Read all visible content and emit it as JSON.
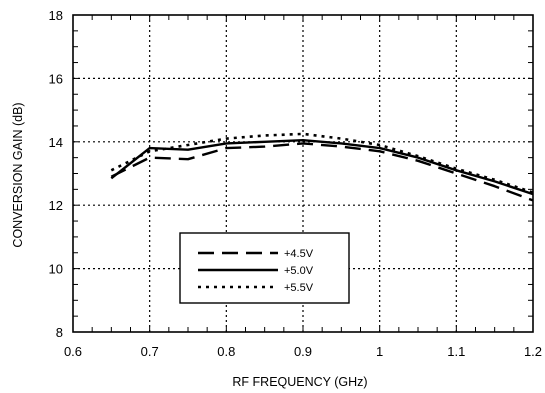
{
  "chart_data": {
    "type": "line",
    "title": "",
    "xlabel": "RF FREQUENCY (GHz)",
    "ylabel": "CONVERSION GAIN (dB)",
    "xlim": [
      0.6,
      1.2
    ],
    "ylim": [
      8,
      18
    ],
    "xticks": [
      "0.6",
      "0.7",
      "0.8",
      "0.9",
      "1",
      "1.1",
      "1.2"
    ],
    "yticks": [
      "8",
      "10",
      "12",
      "14",
      "16",
      "18"
    ],
    "grid": true,
    "legend_position": "bottom-center",
    "series": [
      {
        "name": "+4.5V",
        "style": "dashed",
        "x": [
          0.65,
          0.7,
          0.75,
          0.8,
          0.85,
          0.9,
          0.95,
          1.0,
          1.05,
          1.1,
          1.15,
          1.2
        ],
        "values": [
          12.9,
          13.5,
          13.45,
          13.8,
          13.85,
          13.95,
          13.85,
          13.7,
          13.4,
          13.0,
          12.6,
          12.15
        ]
      },
      {
        "name": "+5.0V",
        "style": "solid",
        "x": [
          0.65,
          0.7,
          0.75,
          0.8,
          0.85,
          0.9,
          0.95,
          1.0,
          1.05,
          1.1,
          1.15,
          1.2
        ],
        "values": [
          12.85,
          13.8,
          13.75,
          13.95,
          14.0,
          14.05,
          13.95,
          13.8,
          13.5,
          13.1,
          12.75,
          12.35
        ]
      },
      {
        "name": "+5.5V",
        "style": "dotted",
        "x": [
          0.65,
          0.7,
          0.75,
          0.8,
          0.85,
          0.9,
          0.95,
          1.0,
          1.05,
          1.1,
          1.15,
          1.2
        ],
        "values": [
          13.1,
          13.7,
          13.9,
          14.1,
          14.2,
          14.25,
          14.1,
          13.9,
          13.55,
          13.15,
          12.8,
          12.4
        ]
      }
    ]
  }
}
